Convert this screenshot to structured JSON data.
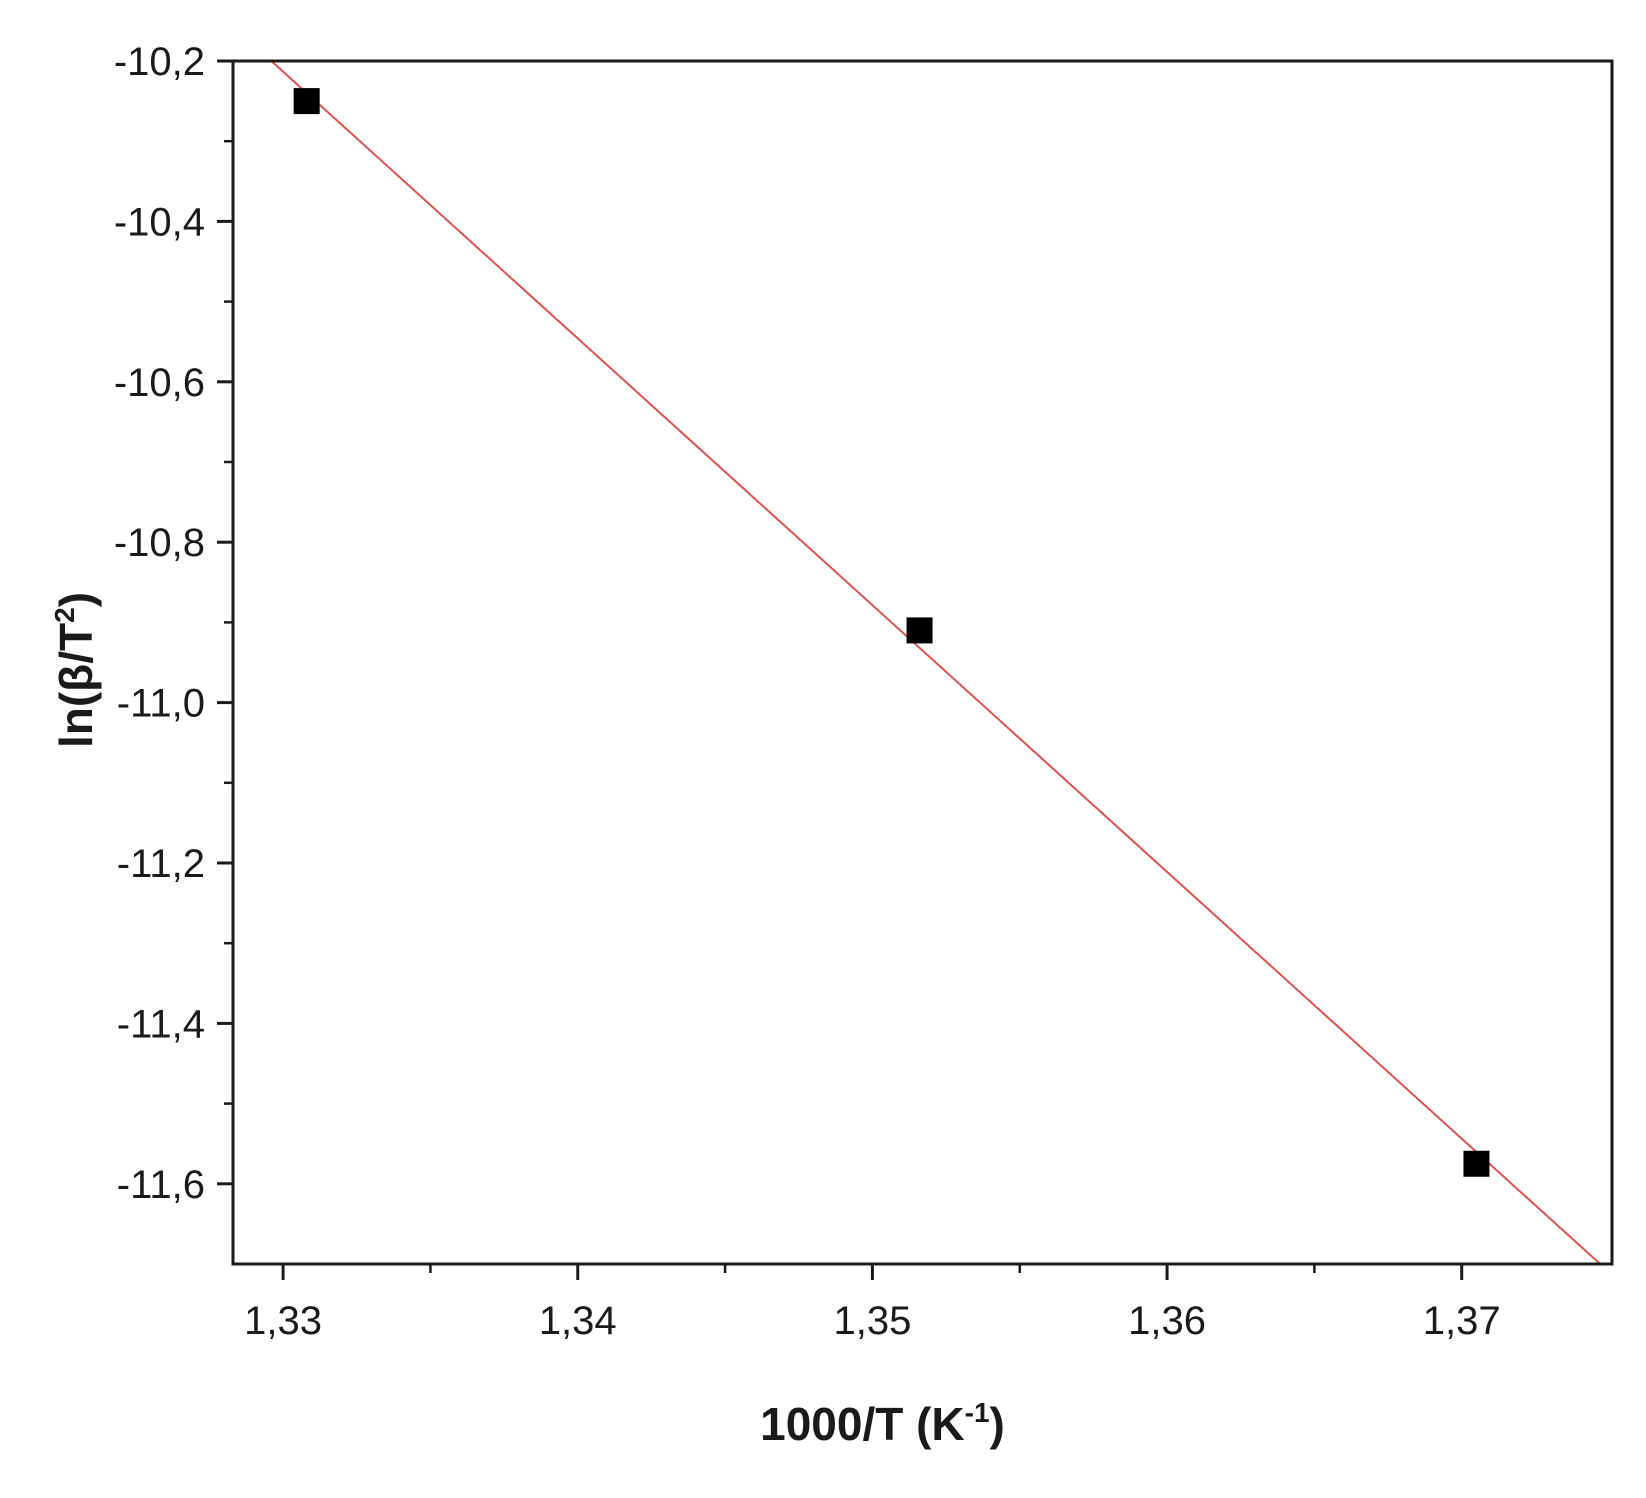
{
  "chart_data": {
    "type": "scatter",
    "xlabel": {
      "main": "1000/T (K",
      "sup": "-1",
      "close": ")"
    },
    "ylabel": {
      "main": "ln(β/T",
      "sup": "2",
      "close": ")"
    },
    "xlim": [
      1.3283,
      1.3751
    ],
    "ylim": [
      -11.7,
      -10.2
    ],
    "x_ticks": [
      {
        "value": 1.33,
        "label": "1,33"
      },
      {
        "value": 1.34,
        "label": "1,34"
      },
      {
        "value": 1.35,
        "label": "1,35"
      },
      {
        "value": 1.36,
        "label": "1,36"
      },
      {
        "value": 1.37,
        "label": "1,37"
      }
    ],
    "x_minor_ticks": [
      1.335,
      1.345,
      1.355,
      1.365
    ],
    "y_ticks": [
      {
        "value": -10.2,
        "label": "-10,2"
      },
      {
        "value": -10.4,
        "label": "-10,4"
      },
      {
        "value": -10.6,
        "label": "-10,6"
      },
      {
        "value": -10.8,
        "label": "-10,8"
      },
      {
        "value": -11.0,
        "label": "-11,0"
      },
      {
        "value": -11.2,
        "label": "-11,2"
      },
      {
        "value": -11.4,
        "label": "-11,4"
      },
      {
        "value": -11.6,
        "label": "-11,6"
      }
    ],
    "y_minor_ticks": [
      -10.3,
      -10.5,
      -10.7,
      -10.9,
      -11.1,
      -11.3,
      -11.5
    ],
    "series": [
      {
        "kind": "points",
        "marker": "square",
        "color": "#000000",
        "x": [
          1.3308,
          1.3516,
          1.3705
        ],
        "y": [
          -10.25,
          -10.91,
          -11.575
        ]
      },
      {
        "kind": "fit-line",
        "color": "#d9534f",
        "x": [
          1.3296,
          1.3747
        ],
        "y": [
          -10.2,
          -11.7
        ]
      }
    ],
    "grid": false,
    "legend": "none"
  }
}
